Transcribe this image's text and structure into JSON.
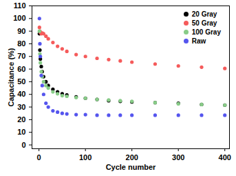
{
  "chart_data": {
    "type": "scatter",
    "x_label": "Cycle number",
    "y_label": "Capacitance (%)",
    "x": [
      1,
      2,
      3,
      5,
      7,
      10,
      15,
      20,
      30,
      40,
      50,
      60,
      80,
      100,
      125,
      150,
      175,
      200,
      250,
      300,
      350,
      400
    ],
    "series": [
      {
        "name": "20 Gray",
        "color": "#000000",
        "values": [
          88,
          75,
          68,
          62,
          58,
          54,
          50,
          47,
          44,
          42,
          40.5,
          39.5,
          38,
          37,
          36,
          35,
          34.5,
          34,
          33.5,
          33,
          32,
          31.5
        ]
      },
      {
        "name": "50 Gray",
        "color": "#f55b5b",
        "values": [
          93,
          90,
          89,
          88,
          88.5,
          88,
          86,
          84,
          81,
          78,
          76,
          74,
          71.5,
          70,
          68.5,
          67.5,
          66.5,
          65.5,
          64,
          62.5,
          61.5,
          60.5
        ]
      },
      {
        "name": "100 Gray",
        "color": "#88cc88",
        "values": [
          90,
          72,
          65,
          58,
          54,
          50,
          47,
          45,
          42,
          40.5,
          39,
          38.5,
          37.5,
          37,
          36,
          35.5,
          35,
          34.5,
          33.5,
          32.5,
          32,
          31.5
        ]
      },
      {
        "name": "Raw",
        "color": "#5555ee",
        "values": [
          100,
          80,
          70,
          55,
          47,
          40,
          33,
          30,
          27,
          26,
          25,
          24.5,
          24,
          24,
          23.5,
          23.5,
          23.5,
          23.5,
          23.5,
          23.5,
          23.5,
          23.5
        ]
      }
    ],
    "xlim": [
      -15,
      410
    ],
    "xticks": [
      0,
      100,
      200,
      300,
      400
    ],
    "ylim": [
      -3,
      110
    ],
    "yticks": [
      0,
      10,
      20,
      30,
      40,
      50,
      60,
      70,
      80,
      90,
      100,
      110
    ],
    "grid": false,
    "legend": "top-right",
    "marker": "circle"
  }
}
